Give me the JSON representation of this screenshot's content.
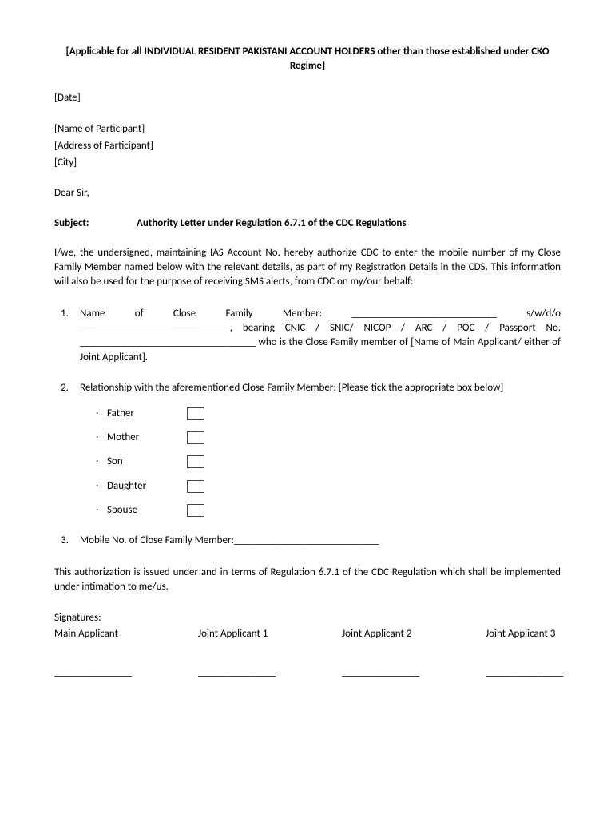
{
  "header": {
    "title": "[Applicable for all INDIVIDUAL RESIDENT PAKISTANI ACCOUNT HOLDERS other than those established under CKO Regime]"
  },
  "placeholders": {
    "date": "[Date]",
    "participant_name": "[Name of Participant]",
    "participant_address": "[Address of Participant]",
    "city": "[City]"
  },
  "salutation": "Dear Sir,",
  "subject": {
    "label": "Subject:",
    "text": "Authority Letter under Regulation 6.7.1 of the CDC Regulations"
  },
  "intro": "I/we, the undersigned, maintaining IAS Account No.      hereby authorize CDC to enter the mobile number of my Close Family Member named below with the relevant details, as part of my Registration Details in the CDS. This information will also be used for the purpose of receiving SMS alerts, from CDC on my/our behalf:",
  "items": {
    "one": {
      "num": "1.",
      "w1": "Name",
      "w2": "of",
      "w3": "Close",
      "w4": "Family",
      "w5": "Member:",
      "blank1": "____________________________",
      "swdo": "s/w/d/o",
      "blank2": "_____________________________,",
      "mid": "bearing CNIC / SNIC/ NICOP / ARC / POC / Passport No.",
      "blank3": "__________________________________",
      "tail": "who is the Close Family member of [Name of Main Applicant/ either of Joint Applicant]."
    },
    "two": {
      "num": "2.",
      "text": "Relationship with the aforementioned Close Family Member: [Please tick the appropriate box below]",
      "options": {
        "father": "Father",
        "mother": "Mother",
        "son": "Son",
        "daughter": "Daughter",
        "spouse": "Spouse"
      }
    },
    "three": {
      "num": "3.",
      "text": "Mobile No. of Close Family Member:____________________________"
    }
  },
  "closing": "This authorization is issued under and in terms of Regulation 6.7.1 of the CDC Regulation which shall be implemented under intimation to me/us.",
  "signatures": {
    "label": "Signatures:",
    "main": "Main Applicant",
    "j1": "Joint Applicant 1",
    "j2": "Joint Applicant 2",
    "j3": "Joint Applicant 3",
    "line": "_______________"
  },
  "bullet": "·"
}
